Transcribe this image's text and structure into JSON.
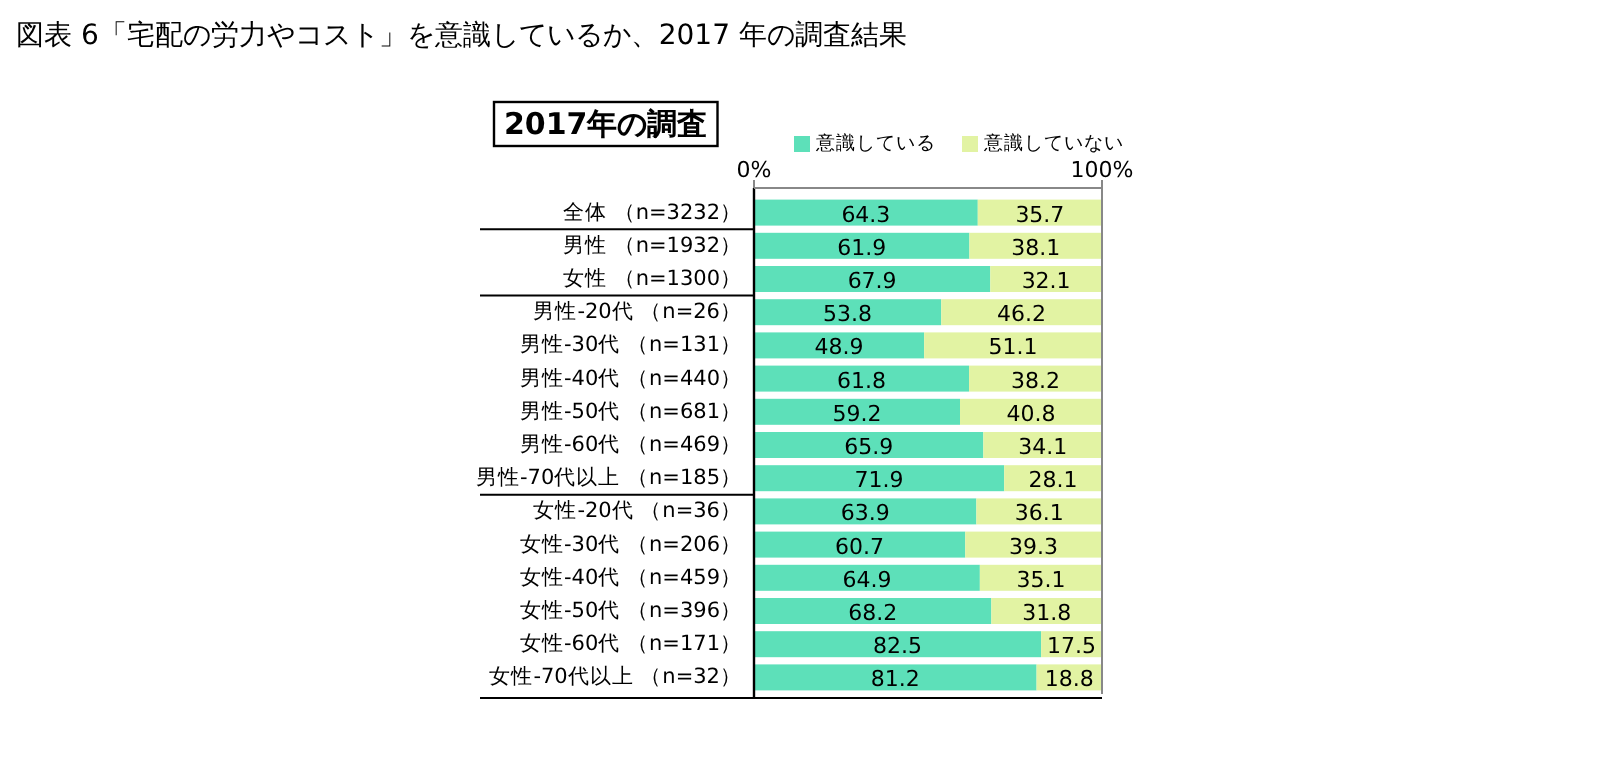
{
  "chart_data": {
    "type": "bar",
    "orientation": "horizontal",
    "stacked": true,
    "title": "図表 6「宅配の労力やコスト」を意識しているか、2017 年の調査結果",
    "subtitle": "2017年の調査",
    "categories": [
      "全体 （n=3232）",
      "男性 （n=1932）",
      "女性 （n=1300）",
      "男性-20代 （n=26）",
      "男性-30代 （n=131）",
      "男性-40代 （n=440）",
      "男性-50代 （n=681）",
      "男性-60代 （n=469）",
      "男性-70代以上 （n=185）",
      "女性-20代 （n=36）",
      "女性-30代 （n=206）",
      "女性-40代 （n=459）",
      "女性-50代 （n=396）",
      "女性-60代 （n=171）",
      "女性-70代以上 （n=32）"
    ],
    "series": [
      {
        "name": "意識している",
        "color": "#5de0b9",
        "values": [
          64.3,
          61.9,
          67.9,
          53.8,
          48.9,
          61.8,
          59.2,
          65.9,
          71.9,
          63.9,
          60.7,
          64.9,
          68.2,
          82.5,
          81.2
        ]
      },
      {
        "name": "意識していない",
        "color": "#e2f3a3",
        "values": [
          35.7,
          38.1,
          32.1,
          46.2,
          51.1,
          38.2,
          40.8,
          34.1,
          28.1,
          36.1,
          39.3,
          35.1,
          31.8,
          17.5,
          18.8
        ]
      }
    ],
    "xlim": [
      0,
      100
    ],
    "xticks": [
      {
        "value": 0,
        "label": "0%"
      },
      {
        "value": 100,
        "label": "100%"
      }
    ],
    "data_labels": true,
    "legend": "top",
    "grid": false
  }
}
